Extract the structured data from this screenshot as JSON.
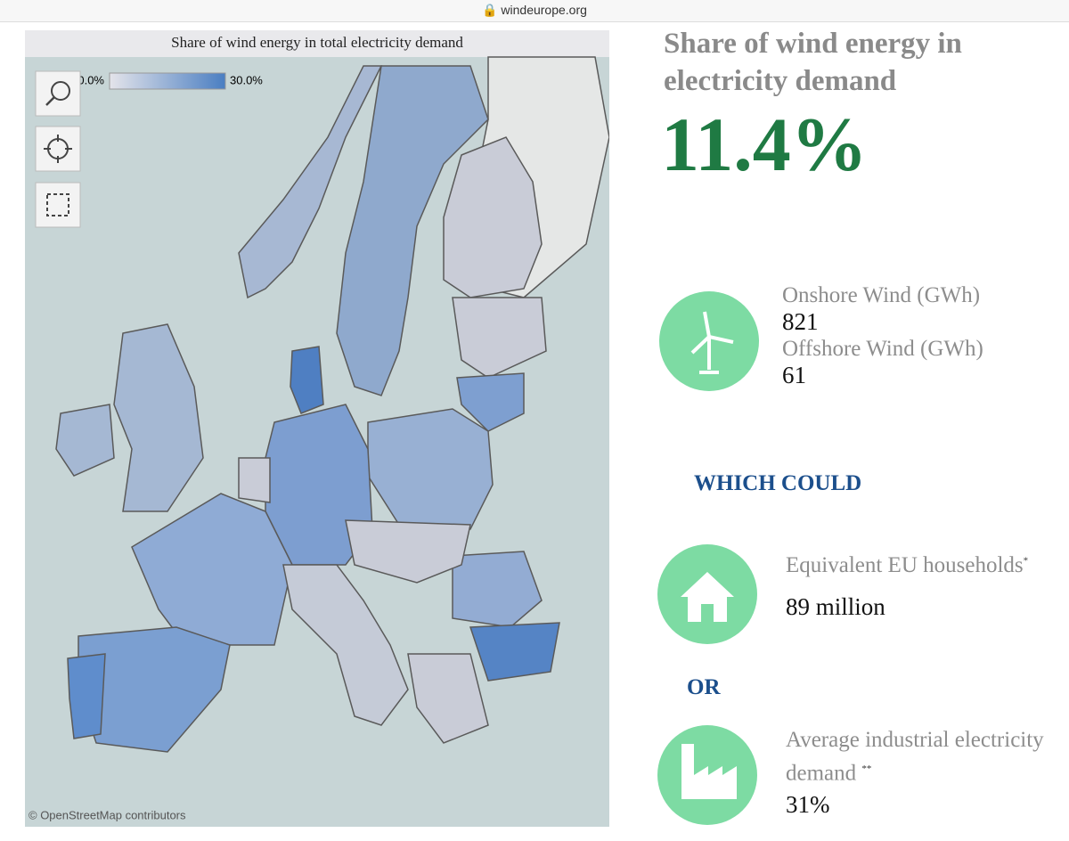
{
  "browser": {
    "url": "windeurope.org"
  },
  "map": {
    "title": "Share of wind energy in total electricity demand",
    "legend": {
      "min_label": "0.0%",
      "max_label": "30.0%"
    },
    "attribution": "© OpenStreetMap contributors"
  },
  "panel": {
    "title": "Share of wind energy in electricity demand",
    "headline": "11.4%",
    "onshore": {
      "label": "Onshore Wind (GWh)",
      "value": "821"
    },
    "offshore": {
      "label": "Offshore Wind (GWh)",
      "value": "61"
    },
    "connector": "WHICH COULD",
    "households": {
      "label": "Equivalent EU households",
      "note": "*",
      "value": "89 million"
    },
    "separator": "OR",
    "industrial": {
      "label": "Average industrial electricity demand",
      "note": "**",
      "value": "31%"
    }
  }
}
